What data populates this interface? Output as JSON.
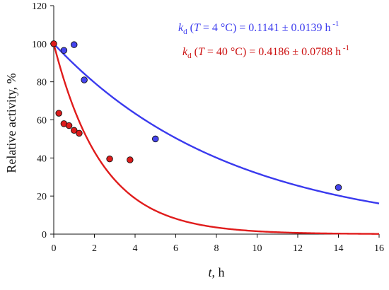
{
  "chart_data": {
    "type": "scatter",
    "title": "",
    "xlabel_italic": "t",
    "xlabel_rest": ", h",
    "ylabel": "Relative activity, %",
    "xlim": [
      0,
      16
    ],
    "ylim": [
      0,
      120
    ],
    "x_ticks": [
      0,
      2,
      4,
      6,
      8,
      10,
      12,
      14,
      16
    ],
    "y_ticks": [
      0,
      20,
      40,
      60,
      80,
      100,
      120
    ],
    "grid": false,
    "series": [
      {
        "color": "#4444ee",
        "line_color": "#3a3aee",
        "x": [
          0.5,
          1.0,
          1.5,
          5.0,
          14.0
        ],
        "y": [
          96.5,
          99.5,
          81.0,
          50.0,
          24.5
        ],
        "fit_kd": 0.1141,
        "fit_start": 100
      },
      {
        "color": "#dd1c1c",
        "line_color": "#e01c1c",
        "x": [
          0,
          0.25,
          0.5,
          0.75,
          1.0,
          1.25,
          2.75,
          3.75
        ],
        "y": [
          100,
          63.5,
          58.0,
          57.0,
          54.5,
          53.0,
          39.5,
          39.0
        ],
        "fit_kd": 0.4186,
        "fit_start": 100
      }
    ],
    "annotations": [
      {
        "k": "k",
        "sub": "d",
        "open": " (",
        "T": "T",
        "cond": " = 4 °C) = 0.1141 ± 0.0139 h",
        "sup": " -1",
        "color": "#3a3aee"
      },
      {
        "k": "k",
        "sub": "d",
        "open": " (",
        "T": "T",
        "cond": " = 40 °C) = 0.4186 ± 0.0788 h",
        "sup": " -1",
        "color": "#cc1111"
      }
    ]
  }
}
